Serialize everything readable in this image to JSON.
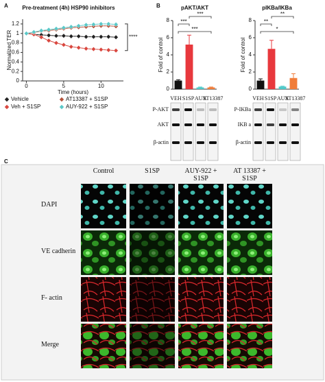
{
  "panel_labels": [
    "A",
    "B",
    "C"
  ],
  "chart_data": [
    {
      "type": "line",
      "title": "Pre-treatment (4h) HSP90 inhibitors",
      "x_label": "Time (hours)",
      "y_label": "Normalized TER",
      "x": [
        0,
        1,
        2,
        3,
        4,
        5,
        6,
        7,
        8,
        9,
        10,
        11,
        12
      ],
      "xlim": [
        -0.5,
        13
      ],
      "xticks": [
        0,
        5,
        10
      ],
      "ylim": [
        0,
        1.3
      ],
      "yticks": [
        0,
        0.2,
        0.4,
        0.6,
        0.8,
        1,
        1.2
      ],
      "series": [
        {
          "name": "Vehicle",
          "color": "#222222",
          "values": [
            1,
            0.98,
            0.97,
            0.96,
            0.95,
            0.95,
            0.94,
            0.94,
            0.93,
            0.93,
            0.93,
            0.93,
            0.92
          ]
        },
        {
          "name": "Veh + S1SP",
          "color": "#d9473f",
          "values": [
            1,
            0.98,
            0.92,
            0.85,
            0.8,
            0.76,
            0.72,
            0.7,
            0.68,
            0.67,
            0.66,
            0.65,
            0.64
          ]
        },
        {
          "name": "AT13387 + S1SP",
          "color": "#b5533c",
          "values": [
            1,
            1.02,
            1.05,
            1.06,
            1.08,
            1.1,
            1.12,
            1.13,
            1.14,
            1.15,
            1.16,
            1.16,
            1.15
          ]
        },
        {
          "name": "AUY-922 + S1SP",
          "color": "#5bc8c8",
          "values": [
            1,
            1.03,
            1.06,
            1.08,
            1.1,
            1.12,
            1.14,
            1.16,
            1.18,
            1.19,
            1.2,
            1.2,
            1.19
          ]
        }
      ],
      "annotation": "****"
    },
    {
      "type": "bar",
      "title": "pAKT/AKT",
      "y_label": "Fold of control",
      "categories": [
        "VEH",
        "S1SP",
        "AUY",
        "AT13387"
      ],
      "values": [
        1,
        5.2,
        0.2,
        0.2
      ],
      "errors": [
        0.1,
        1.1,
        0.05,
        0.05
      ],
      "colors": [
        "#111111",
        "#e8383d",
        "#4fc9c9",
        "#f07d3a"
      ],
      "ylim": [
        0,
        8
      ],
      "yticks": [
        0,
        2,
        4,
        6,
        8
      ],
      "annotations": [
        "***",
        "***",
        "***"
      ],
      "blot_labels": [
        "P-AKT",
        "AKT",
        "β-actin"
      ]
    },
    {
      "type": "bar",
      "title": "pIKBa/IKBa",
      "y_label": "Fold of control",
      "categories": [
        "VEH",
        "S1SP",
        "AUY",
        "AT13387"
      ],
      "values": [
        1,
        4.7,
        0.3,
        1.3
      ],
      "errors": [
        0.2,
        1.0,
        0.05,
        0.5
      ],
      "colors": [
        "#111111",
        "#e8383d",
        "#4fc9c9",
        "#f07d3a"
      ],
      "ylim": [
        0,
        8
      ],
      "yticks": [
        0,
        2,
        4,
        6,
        8
      ],
      "annotations": [
        "**",
        "**",
        "*"
      ],
      "blot_labels": [
        "P-IKBa",
        "IKB a",
        "β-actin"
      ]
    }
  ],
  "micrographs": {
    "columns": [
      "Control",
      "S1SP",
      "AUY-922 + S1SP",
      "AT 13387 + S1SP"
    ],
    "rows": [
      "DAPI",
      "VE cadherin",
      "F- actin",
      "Merge"
    ]
  }
}
